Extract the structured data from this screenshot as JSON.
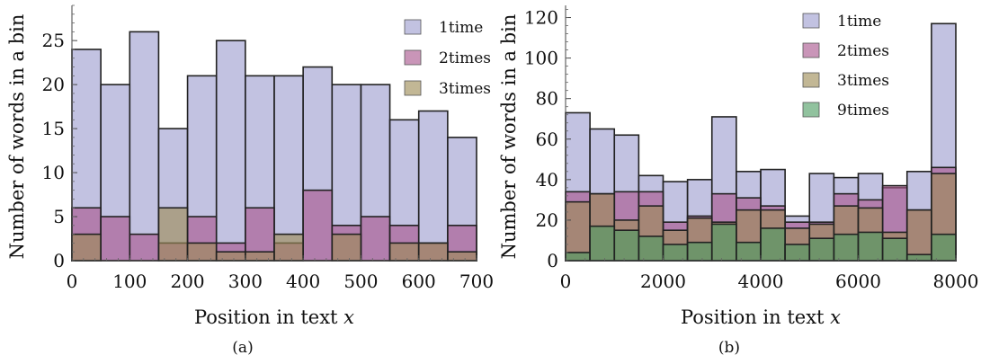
{
  "colors": {
    "1time": "#9c9ccf",
    "2times": "#a8548c",
    "3times": "#9c8a54",
    "9times": "#4e9c62",
    "alpha": 0.62
  },
  "chart_data": [
    {
      "type": "bar",
      "subtype": "overlapping-histogram",
      "caption": "(a)",
      "xlabel": "Position in text ",
      "xlabel_var": "x",
      "ylabel": "Number of words in a bin",
      "xlim": [
        0,
        700
      ],
      "ylim": [
        0,
        29
      ],
      "xticks": [
        0,
        100,
        200,
        300,
        400,
        500,
        600,
        700
      ],
      "yticks": [
        0,
        5,
        10,
        15,
        20,
        25
      ],
      "bin_width": 50,
      "bin_starts": [
        0,
        50,
        100,
        150,
        200,
        250,
        300,
        350,
        400,
        450,
        500,
        550,
        600,
        650
      ],
      "legend_position": "top-right",
      "series": [
        {
          "name": "1time",
          "key": "1time",
          "values": [
            24,
            20,
            26,
            15,
            21,
            25,
            21,
            21,
            22,
            20,
            20,
            16,
            17,
            14
          ]
        },
        {
          "name": "2times",
          "key": "2times",
          "values": [
            6,
            5,
            3,
            2,
            5,
            2,
            6,
            2,
            8,
            4,
            5,
            4,
            2,
            4
          ]
        },
        {
          "name": "3times",
          "key": "3times",
          "values": [
            3,
            0,
            0,
            6,
            2,
            1,
            1,
            3,
            0,
            3,
            0,
            2,
            2,
            1
          ]
        }
      ]
    },
    {
      "type": "bar",
      "subtype": "overlapping-histogram",
      "caption": "(b)",
      "xlabel": "Position in text ",
      "xlabel_var": "x",
      "ylabel": "Number of words in a bin",
      "xlim": [
        0,
        8000
      ],
      "ylim": [
        0,
        126
      ],
      "xticks": [
        0,
        2000,
        4000,
        6000,
        8000
      ],
      "yticks": [
        0,
        20,
        40,
        60,
        80,
        100,
        120
      ],
      "bin_width": 500,
      "bin_starts": [
        0,
        500,
        1000,
        1500,
        2000,
        2500,
        3000,
        3500,
        4000,
        4500,
        5000,
        5500,
        6000,
        6500,
        7000,
        7500
      ],
      "legend_position": "top-center",
      "series": [
        {
          "name": "1time",
          "key": "1time",
          "values": [
            73,
            65,
            62,
            42,
            39,
            40,
            71,
            44,
            45,
            22,
            43,
            41,
            43,
            36,
            44,
            117
          ]
        },
        {
          "name": "2times",
          "key": "2times",
          "values": [
            34,
            33,
            34,
            34,
            19,
            22,
            33,
            31,
            27,
            19,
            19,
            33,
            30,
            37,
            25,
            46
          ]
        },
        {
          "name": "3times",
          "key": "3times",
          "values": [
            29,
            33,
            20,
            27,
            15,
            21,
            19,
            25,
            25,
            16,
            18,
            27,
            26,
            14,
            25,
            43
          ]
        },
        {
          "name": "9times",
          "key": "9times",
          "values": [
            4,
            17,
            15,
            12,
            8,
            9,
            18,
            9,
            16,
            8,
            11,
            13,
            14,
            11,
            3,
            13
          ]
        }
      ]
    }
  ]
}
